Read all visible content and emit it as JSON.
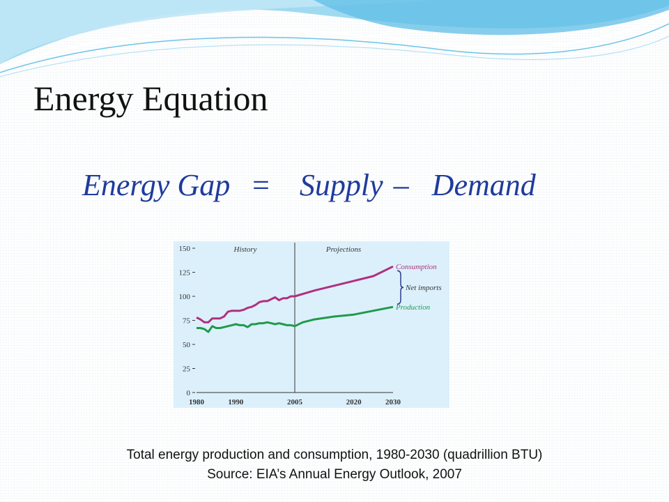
{
  "slide": {
    "title": "Energy Equation",
    "equation": {
      "term_gap": "Energy Gap",
      "equals": "=",
      "term_supply": "Supply",
      "minus": "–",
      "term_demand": "Demand"
    },
    "caption_line1": "Total energy production and consumption, 1980-2030 (quadrillion BTU)",
    "caption_line2": "Source:  EIA’s Annual Energy Outlook, 2007"
  },
  "colors": {
    "equation_text": "#1f3b9c",
    "consumption": "#b0307f",
    "production": "#1f9a4a",
    "chart_background": "#dcf0fb",
    "net_imports_brace": "#2d3a8c"
  },
  "chart_data": {
    "type": "line",
    "xlim": [
      1980,
      2030
    ],
    "ylim": [
      0,
      150
    ],
    "y_ticks": [
      0,
      25,
      50,
      75,
      100,
      125,
      150
    ],
    "x_ticks": [
      1980,
      1990,
      2005,
      2020,
      2030
    ],
    "divider_year": 2005,
    "region_labels": [
      "History",
      "Projections"
    ],
    "annotation": "Net imports",
    "series": [
      {
        "name": "Consumption",
        "x": [
          1980,
          1981,
          1982,
          1983,
          1984,
          1985,
          1986,
          1987,
          1988,
          1989,
          1990,
          1991,
          1992,
          1993,
          1994,
          1995,
          1996,
          1997,
          1998,
          1999,
          2000,
          2001,
          2002,
          2003,
          2004,
          2005,
          2010,
          2015,
          2020,
          2025,
          2030
        ],
        "values": [
          78,
          76,
          73,
          73,
          77,
          77,
          77,
          79,
          84,
          85,
          85,
          85,
          86,
          88,
          89,
          91,
          94,
          95,
          95,
          97,
          99,
          96,
          98,
          98,
          100,
          100,
          106,
          111,
          116,
          121,
          131
        ]
      },
      {
        "name": "Production",
        "x": [
          1980,
          1981,
          1982,
          1983,
          1984,
          1985,
          1986,
          1987,
          1988,
          1989,
          1990,
          1991,
          1992,
          1993,
          1994,
          1995,
          1996,
          1997,
          1998,
          1999,
          2000,
          2001,
          2002,
          2003,
          2004,
          2005,
          2007,
          2010,
          2015,
          2020,
          2025,
          2030
        ],
        "values": [
          67,
          67,
          66,
          63,
          69,
          67,
          67,
          68,
          69,
          70,
          71,
          70,
          70,
          68,
          71,
          71,
          72,
          72,
          73,
          72,
          71,
          72,
          71,
          70,
          70,
          69,
          73,
          76,
          79,
          81,
          85,
          89
        ]
      }
    ]
  }
}
